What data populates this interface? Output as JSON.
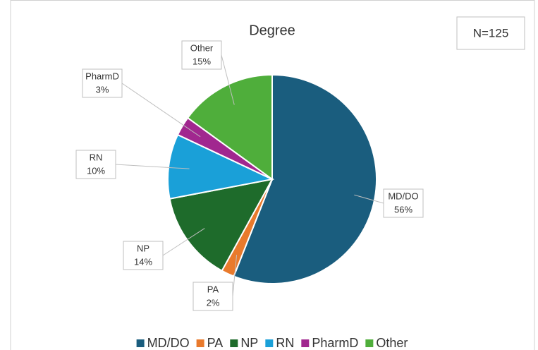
{
  "chart_data": {
    "type": "pie",
    "title": "Degree",
    "annotation": "N=125",
    "categories": [
      "MD/DO",
      "PA",
      "NP",
      "RN",
      "PharmD",
      "Other"
    ],
    "values": [
      56,
      2,
      14,
      10,
      3,
      15
    ],
    "value_labels": [
      "56%",
      "2%",
      "14%",
      "10%",
      "3%",
      "15%"
    ],
    "colors": [
      "#1a5d7e",
      "#e97a2c",
      "#1e6b2b",
      "#1aa0d8",
      "#a1278f",
      "#4fae3b"
    ],
    "legend": "bottom"
  }
}
